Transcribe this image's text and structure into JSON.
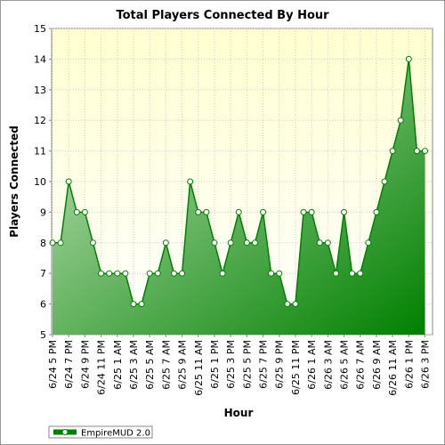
{
  "chart_data": {
    "type": "area",
    "title": "Total Players Connected By Hour",
    "x_label": "Hour",
    "y_label": "Players Connected",
    "categories": [
      "6/24 5 PM",
      null,
      "6/24 7 PM",
      null,
      "6/24 9 PM",
      null,
      "6/24 11 PM",
      null,
      "6/25 1 AM",
      null,
      "6/25 3 AM",
      null,
      "6/25 5 AM",
      null,
      "6/25 7 AM",
      null,
      "6/25 9 AM",
      null,
      "6/25 11 AM",
      null,
      "6/25 1 PM",
      null,
      "6/25 3 PM",
      null,
      "6/25 5 PM",
      null,
      "6/25 7 PM",
      null,
      "6/25 9 PM",
      null,
      "6/25 11 PM",
      null,
      "6/26 1 AM",
      null,
      "6/26 3 AM",
      null,
      "6/26 5 AM",
      null,
      "6/26 7 AM",
      null,
      "6/26 9 AM",
      null,
      "6/26 11 AM",
      null,
      "6/26 1 PM",
      null,
      "6/26 3 PM"
    ],
    "series": [
      {
        "name": "EmpireMUD 2.0",
        "color": "#008000",
        "values": [
          8,
          8,
          10,
          9,
          9,
          8,
          7,
          7,
          7,
          7,
          6,
          6,
          7,
          7,
          8,
          7,
          7,
          10,
          9,
          9,
          8,
          7,
          8,
          9,
          8,
          8,
          9,
          7,
          7,
          6,
          6,
          9,
          9,
          8,
          8,
          7,
          9,
          7,
          7,
          8,
          9,
          10,
          11,
          12,
          14,
          11,
          11
        ]
      }
    ],
    "ylim": [
      5,
      15
    ],
    "yticks": [
      5,
      6,
      7,
      8,
      9,
      10,
      11,
      12,
      13,
      14,
      15
    ],
    "grid": true,
    "legend": "bottom-left"
  }
}
